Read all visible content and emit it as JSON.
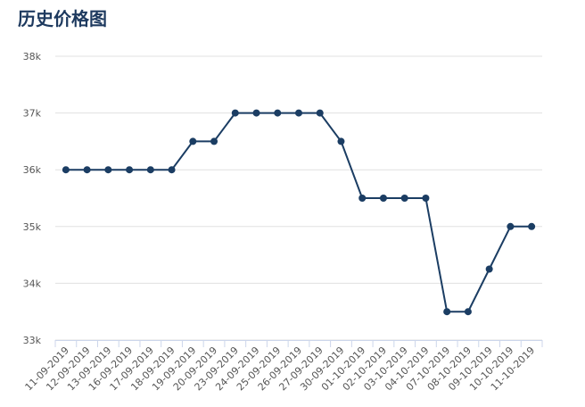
{
  "chart_data": {
    "type": "line",
    "title": "历史价格图",
    "categories": [
      "11-09-2019",
      "12-09-2019",
      "13-09-2019",
      "16-09-2019",
      "17-09-2019",
      "18-09-2019",
      "19-09-2019",
      "20-09-2019",
      "23-09-2019",
      "24-09-2019",
      "25-09-2019",
      "26-09-2019",
      "27-09-2019",
      "30-09-2019",
      "01-10-2019",
      "02-10-2019",
      "03-10-2019",
      "04-10-2019",
      "07-10-2019",
      "08-10-2019",
      "09-10-2019",
      "10-10-2019",
      "11-10-2019"
    ],
    "values": [
      36000,
      36000,
      36000,
      36000,
      36000,
      36000,
      36500,
      36500,
      37000,
      37000,
      37000,
      37000,
      37000,
      36500,
      35500,
      35500,
      35500,
      35500,
      33500,
      33500,
      34250,
      35000,
      35000
    ],
    "color": "#1b3d63",
    "ylim": [
      33000,
      38000
    ],
    "yticks": [
      {
        "value": 33000,
        "label": "33k"
      },
      {
        "value": 34000,
        "label": "34k"
      },
      {
        "value": 35000,
        "label": "35k"
      },
      {
        "value": 36000,
        "label": "36k"
      },
      {
        "value": 37000,
        "label": "37k"
      },
      {
        "value": 38000,
        "label": "38k"
      }
    ],
    "grid": true
  }
}
